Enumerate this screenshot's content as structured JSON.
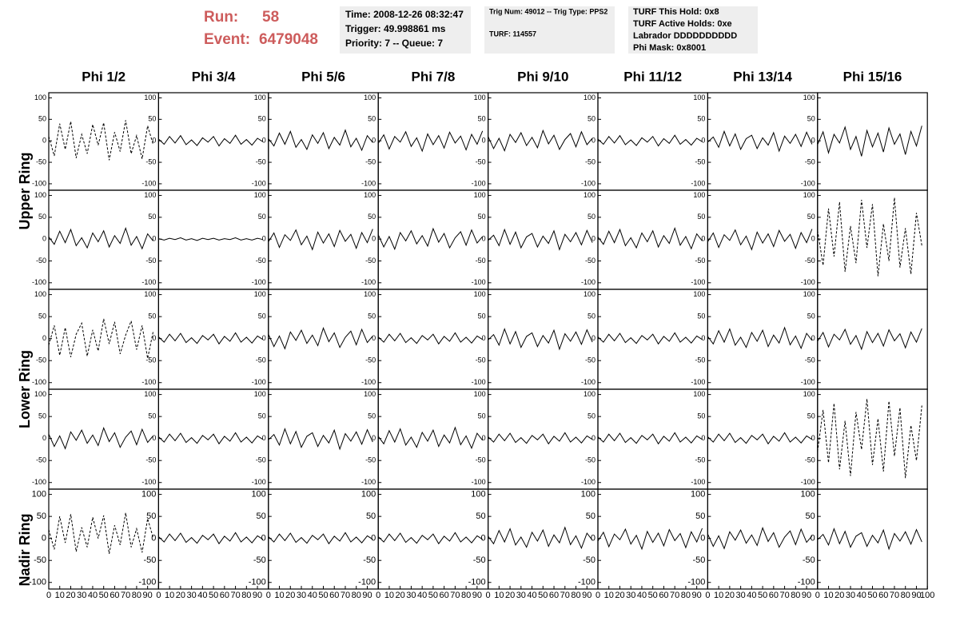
{
  "chart_data": {
    "type": "line",
    "header": {
      "run_label": "Run:",
      "run": "58",
      "event_label": "Event:",
      "event": "6479048",
      "box1": [
        "Time: 2008-12-26 08:32:47",
        "Trigger: 49.998861 ms",
        "Priority: 7 -- Queue: 7"
      ],
      "box2": [
        "Trig Num: 49012 -- Trig Type: PPS2",
        "TURF: 114557"
      ],
      "box3": [
        "TURF This Hold: 0x8",
        "TURF Active Holds: 0xe",
        "Labrador DDDDDDDDDD",
        "Phi Mask: 0x8001"
      ]
    },
    "columns": [
      "Phi 1/2",
      "Phi 3/4",
      "Phi 5/6",
      "Phi 7/8",
      "Phi 9/10",
      "Phi 11/12",
      "Phi 13/14",
      "Phi 15/16"
    ],
    "row_labels": [
      "Upper Ring",
      "Lower Ring",
      "Nadir Ring"
    ],
    "xlim": [
      0,
      100
    ],
    "xticks": [
      0,
      10,
      20,
      30,
      40,
      50,
      60,
      70,
      80,
      90,
      100
    ],
    "ylim": [
      -115,
      112
    ],
    "yticks": [
      100,
      50,
      0,
      -50,
      -100
    ],
    "x": [
      0,
      5,
      10,
      15,
      20,
      25,
      30,
      35,
      40,
      45,
      50,
      55,
      60,
      65,
      70,
      75,
      80,
      85,
      90,
      95
    ],
    "panels": [
      [
        {
          "dashed": true,
          "values": [
            10,
            -35,
            40,
            -20,
            45,
            -40,
            15,
            -30,
            38,
            -10,
            42,
            -45,
            20,
            -25,
            48,
            -30,
            12,
            -42,
            35,
            -8
          ]
        },
        {
          "values": [
            4,
            -8,
            10,
            -5,
            12,
            -9,
            2,
            -11,
            7,
            -3,
            10,
            -12,
            5,
            -6,
            13,
            -8,
            3,
            -10,
            6,
            -2
          ]
        },
        {
          "values": [
            5,
            -12,
            18,
            -8,
            22,
            -15,
            3,
            -20,
            14,
            -6,
            19,
            -18,
            8,
            -10,
            25,
            -14,
            6,
            -22,
            12,
            -4
          ]
        },
        {
          "values": [
            -6,
            14,
            -19,
            10,
            -3,
            21,
            -13,
            7,
            -24,
            16,
            -9,
            12,
            -17,
            20,
            -5,
            11,
            -21,
            15,
            -8,
            23
          ]
        },
        {
          "values": [
            10,
            -18,
            6,
            -23,
            15,
            -4,
            19,
            -11,
            8,
            -16,
            24,
            -7,
            13,
            -20,
            3,
            17,
            -14,
            21,
            -9,
            6
          ]
        },
        {
          "values": [
            4,
            -8,
            10,
            -5,
            12,
            -9,
            2,
            -11,
            7,
            -3,
            10,
            -12,
            5,
            -6,
            13,
            -8,
            3,
            -10,
            6,
            -2
          ]
        },
        {
          "values": [
            -3,
            9,
            -15,
            22,
            -12,
            16,
            -20,
            5,
            13,
            -18,
            7,
            -10,
            19,
            -24,
            11,
            -6,
            15,
            -13,
            20,
            -8
          ]
        },
        {
          "values": [
            -9,
            21,
            -28,
            15,
            -5,
            32,
            -20,
            10,
            -36,
            24,
            -14,
            18,
            -26,
            30,
            -8,
            16,
            -32,
            22,
            -12,
            35
          ]
        }
      ],
      [
        {
          "values": [
            5,
            -12,
            18,
            -8,
            22,
            -15,
            3,
            -20,
            14,
            -6,
            19,
            -18,
            8,
            -10,
            25,
            -14,
            6,
            -22,
            12,
            -4
          ]
        },
        {
          "values": [
            1,
            -2,
            2,
            -1,
            3,
            -2,
            1,
            -3,
            2,
            -1,
            2,
            -2,
            1,
            -1,
            3,
            -2,
            1,
            -2,
            2,
            -1
          ]
        },
        {
          "values": [
            -6,
            14,
            -19,
            10,
            -3,
            21,
            -13,
            7,
            -24,
            16,
            -9,
            12,
            -17,
            20,
            -5,
            11,
            -21,
            15,
            -8,
            23
          ]
        },
        {
          "values": [
            10,
            -18,
            6,
            -23,
            15,
            -4,
            19,
            -11,
            8,
            -16,
            24,
            -7,
            13,
            -20,
            3,
            17,
            -14,
            21,
            -9,
            6
          ]
        },
        {
          "values": [
            -3,
            9,
            -15,
            22,
            -12,
            16,
            -20,
            5,
            13,
            -18,
            7,
            -10,
            19,
            -24,
            11,
            -6,
            15,
            -13,
            20,
            -8
          ]
        },
        {
          "values": [
            5,
            -12,
            18,
            -8,
            22,
            -15,
            3,
            -20,
            14,
            -6,
            19,
            -18,
            8,
            -10,
            25,
            -14,
            6,
            -22,
            12,
            -4
          ]
        },
        {
          "values": [
            -6,
            14,
            -19,
            10,
            -3,
            21,
            -13,
            7,
            -24,
            16,
            -9,
            12,
            -17,
            20,
            -5,
            11,
            -21,
            15,
            -8,
            23
          ]
        },
        {
          "dashed": true,
          "values": [
            20,
            -60,
            70,
            -40,
            85,
            -75,
            30,
            -55,
            90,
            -20,
            80,
            -85,
            35,
            -50,
            95,
            -65,
            25,
            -80,
            60,
            -15
          ]
        }
      ],
      [
        {
          "dashed": true,
          "values": [
            -15,
            30,
            -38,
            25,
            -42,
            10,
            35,
            -40,
            20,
            -28,
            45,
            -12,
            38,
            -35,
            8,
            40,
            -25,
            30,
            -45,
            15
          ]
        },
        {
          "values": [
            4,
            -8,
            10,
            -5,
            12,
            -9,
            2,
            -11,
            7,
            -3,
            10,
            -12,
            5,
            -6,
            13,
            -8,
            3,
            -10,
            6,
            -2
          ]
        },
        {
          "values": [
            10,
            -18,
            6,
            -23,
            15,
            -4,
            19,
            -11,
            8,
            -16,
            24,
            -7,
            13,
            -20,
            3,
            17,
            -14,
            21,
            -9,
            6
          ]
        },
        {
          "values": [
            4,
            -8,
            10,
            -5,
            12,
            -9,
            2,
            -11,
            7,
            -3,
            10,
            -12,
            5,
            -6,
            13,
            -8,
            3,
            -10,
            6,
            -2
          ]
        },
        {
          "values": [
            -3,
            9,
            -15,
            22,
            -12,
            16,
            -20,
            5,
            13,
            -18,
            7,
            -10,
            19,
            -24,
            11,
            -6,
            15,
            -13,
            20,
            -8
          ]
        },
        {
          "values": [
            4,
            -8,
            10,
            -5,
            12,
            -9,
            2,
            -11,
            7,
            -3,
            10,
            -12,
            5,
            -6,
            13,
            -8,
            3,
            -10,
            6,
            -2
          ]
        },
        {
          "values": [
            5,
            -12,
            18,
            -8,
            22,
            -15,
            3,
            -20,
            14,
            -6,
            19,
            -18,
            8,
            -10,
            25,
            -14,
            6,
            -22,
            12,
            -4
          ]
        },
        {
          "values": [
            -6,
            14,
            -19,
            10,
            -3,
            21,
            -13,
            7,
            -24,
            16,
            -9,
            12,
            -17,
            20,
            -5,
            11,
            -21,
            15,
            -8,
            23
          ]
        }
      ],
      [
        {
          "values": [
            10,
            -18,
            6,
            -23,
            15,
            -4,
            19,
            -11,
            8,
            -16,
            24,
            -7,
            13,
            -20,
            3,
            17,
            -14,
            21,
            -9,
            6
          ]
        },
        {
          "values": [
            4,
            -8,
            10,
            -5,
            12,
            -9,
            2,
            -11,
            7,
            -3,
            10,
            -12,
            5,
            -6,
            13,
            -8,
            3,
            -10,
            6,
            -2
          ]
        },
        {
          "values": [
            -3,
            9,
            -15,
            22,
            -12,
            16,
            -20,
            5,
            13,
            -18,
            7,
            -10,
            19,
            -24,
            11,
            -6,
            15,
            -13,
            20,
            -8
          ]
        },
        {
          "values": [
            5,
            -12,
            18,
            -8,
            22,
            -15,
            3,
            -20,
            14,
            -6,
            19,
            -18,
            8,
            -10,
            25,
            -14,
            6,
            -22,
            12,
            -4
          ]
        },
        {
          "values": [
            4,
            -8,
            10,
            -5,
            12,
            -9,
            2,
            -11,
            7,
            -3,
            10,
            -12,
            5,
            -6,
            13,
            -8,
            3,
            -10,
            6,
            -2
          ]
        },
        {
          "values": [
            4,
            -8,
            10,
            -5,
            12,
            -9,
            2,
            -11,
            7,
            -3,
            10,
            -12,
            5,
            -6,
            13,
            -8,
            3,
            -10,
            6,
            -2
          ]
        },
        {
          "values": [
            4,
            -8,
            10,
            -5,
            12,
            -9,
            2,
            -11,
            7,
            -3,
            10,
            -12,
            5,
            -6,
            13,
            -8,
            3,
            -10,
            6,
            -2
          ]
        },
        {
          "dashed": true,
          "values": [
            -30,
            65,
            -55,
            80,
            -70,
            40,
            -85,
            60,
            -25,
            90,
            -60,
            45,
            -75,
            85,
            -40,
            70,
            -90,
            30,
            -50,
            75
          ]
        }
      ],
      [
        {
          "dashed": true,
          "values": [
            20,
            -25,
            50,
            -10,
            55,
            -30,
            25,
            -20,
            48,
            0,
            52,
            -35,
            30,
            -15,
            58,
            -20,
            22,
            -32,
            45,
            2
          ]
        },
        {
          "values": [
            4,
            -8,
            10,
            -5,
            12,
            -9,
            2,
            -11,
            7,
            -3,
            10,
            -12,
            5,
            -6,
            13,
            -8,
            3,
            -10,
            6,
            -2
          ]
        },
        {
          "values": [
            4,
            -8,
            10,
            -5,
            12,
            -9,
            2,
            -11,
            7,
            -3,
            10,
            -12,
            5,
            -6,
            13,
            -8,
            3,
            -10,
            6,
            -2
          ]
        },
        {
          "values": [
            4,
            -8,
            10,
            -5,
            12,
            -9,
            2,
            -11,
            7,
            -3,
            10,
            -12,
            5,
            -6,
            13,
            -8,
            3,
            -10,
            6,
            -2
          ]
        },
        {
          "values": [
            5,
            -12,
            18,
            -8,
            22,
            -15,
            3,
            -20,
            14,
            -6,
            19,
            -18,
            8,
            -10,
            25,
            -14,
            6,
            -22,
            12,
            -4
          ]
        },
        {
          "values": [
            -6,
            14,
            -19,
            10,
            -3,
            21,
            -13,
            7,
            -24,
            16,
            -9,
            12,
            -17,
            20,
            -5,
            11,
            -21,
            15,
            -8,
            23
          ]
        },
        {
          "values": [
            10,
            -18,
            6,
            -23,
            15,
            -4,
            19,
            -11,
            8,
            -16,
            24,
            -7,
            13,
            -20,
            3,
            17,
            -14,
            21,
            -9,
            6
          ]
        },
        {
          "values": [
            -3,
            9,
            -15,
            22,
            -12,
            16,
            -20,
            5,
            13,
            -18,
            7,
            -10,
            19,
            -24,
            11,
            -6,
            15,
            -13,
            20,
            -8
          ]
        }
      ]
    ]
  }
}
